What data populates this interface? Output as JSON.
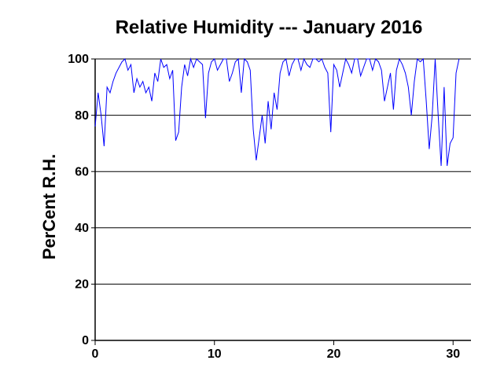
{
  "chart_data": {
    "type": "line",
    "title": "Relative Humidity --- January 2016",
    "y_label": "PerCent R.H.",
    "x": [
      0,
      0.25,
      0.5,
      0.75,
      1,
      1.25,
      1.5,
      1.75,
      2,
      2.25,
      2.5,
      2.75,
      3,
      3.25,
      3.5,
      3.75,
      4,
      4.25,
      4.5,
      4.75,
      5,
      5.25,
      5.5,
      5.75,
      6,
      6.25,
      6.5,
      6.75,
      7,
      7.25,
      7.5,
      7.75,
      8,
      8.25,
      8.5,
      8.75,
      9,
      9.25,
      9.5,
      9.75,
      10,
      10.25,
      10.5,
      10.75,
      11,
      11.25,
      11.5,
      11.75,
      12,
      12.25,
      12.5,
      12.75,
      13,
      13.25,
      13.5,
      13.75,
      14,
      14.25,
      14.5,
      14.75,
      15,
      15.25,
      15.5,
      15.75,
      16,
      16.25,
      16.5,
      16.75,
      17,
      17.25,
      17.5,
      17.75,
      18,
      18.25,
      18.5,
      18.75,
      19,
      19.25,
      19.5,
      19.75,
      20,
      20.25,
      20.5,
      20.75,
      21,
      21.25,
      21.5,
      21.75,
      22,
      22.25,
      22.5,
      22.75,
      23,
      23.25,
      23.5,
      23.75,
      24,
      24.25,
      24.5,
      24.75,
      25,
      25.25,
      25.5,
      25.75,
      26,
      26.25,
      26.5,
      26.75,
      27,
      27.25,
      27.5,
      27.75,
      28,
      28.25,
      28.5,
      28.75,
      29,
      29.25,
      29.5,
      29.75,
      30,
      30.25,
      30.5
    ],
    "series": [
      {
        "color": "#0000ff",
        "values": [
          76,
          88,
          80,
          69,
          90,
          88,
          92,
          95,
          97,
          99,
          100,
          96,
          98,
          88,
          93,
          90,
          92,
          88,
          90,
          85,
          95,
          92,
          100,
          97,
          98,
          93,
          96,
          71,
          74,
          90,
          98,
          94,
          100,
          97,
          100,
          99,
          98,
          79,
          95,
          99,
          100,
          96,
          98,
          100,
          100,
          92,
          95,
          99,
          100,
          88,
          100,
          99,
          96,
          75,
          64,
          72,
          80,
          70,
          85,
          75,
          88,
          82,
          95,
          99,
          100,
          94,
          98,
          100,
          100,
          96,
          100,
          98,
          97,
          100,
          100,
          99,
          100,
          97,
          95,
          74,
          98,
          96,
          90,
          95,
          100,
          98,
          95,
          100,
          100,
          94,
          97,
          100,
          100,
          96,
          100,
          99,
          96,
          85,
          90,
          95,
          82,
          96,
          100,
          98,
          95,
          90,
          80,
          92,
          100,
          99,
          100,
          85,
          68,
          80,
          100,
          80,
          62,
          90,
          62,
          70,
          72,
          95,
          100
        ]
      }
    ],
    "xlim": [
      0,
      31.5
    ],
    "ylim": [
      0,
      100
    ],
    "xticks": [
      0,
      10,
      20,
      30
    ],
    "yticks": [
      0,
      20,
      40,
      60,
      80,
      100
    ],
    "grid": true
  }
}
